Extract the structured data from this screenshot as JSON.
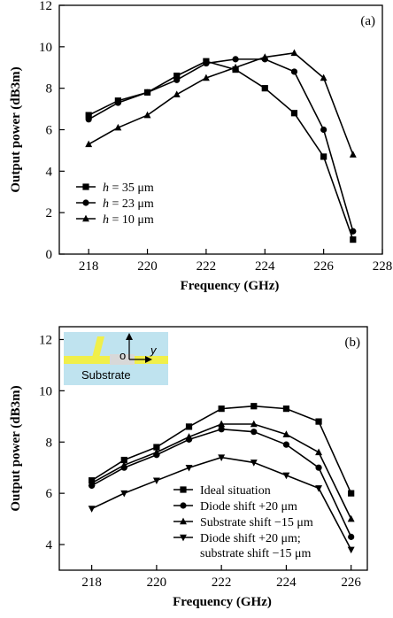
{
  "chart_data": [
    {
      "type": "line",
      "panel_label": "(a)",
      "xlabel": "Frequency (GHz)",
      "ylabel": "Output power (dB3m)",
      "xlim": [
        217,
        228
      ],
      "ylim": [
        0,
        12
      ],
      "xticks": [
        218,
        220,
        222,
        224,
        226,
        228
      ],
      "yticks": [
        0,
        2,
        4,
        6,
        8,
        10,
        12
      ],
      "legend_position": "lower-left",
      "series": [
        {
          "name": "h = 35 μm",
          "name_var": "h",
          "name_rest": " = 35 μm",
          "marker": "square",
          "x": [
            218,
            219,
            220,
            221,
            222,
            223,
            224,
            225,
            226,
            227
          ],
          "y": [
            6.7,
            7.4,
            7.8,
            8.6,
            9.3,
            8.9,
            8.0,
            6.8,
            4.7,
            0.7
          ]
        },
        {
          "name": "h = 23 μm",
          "name_var": "h",
          "name_rest": " = 23 μm",
          "marker": "circle",
          "x": [
            218,
            219,
            220,
            221,
            222,
            223,
            224,
            225,
            226,
            227
          ],
          "y": [
            6.5,
            7.3,
            7.8,
            8.4,
            9.2,
            9.4,
            9.4,
            8.8,
            6.0,
            1.1
          ]
        },
        {
          "name": "h = 10 μm",
          "name_var": "h",
          "name_rest": " = 10 μm",
          "marker": "triangle-up",
          "x": [
            218,
            219,
            220,
            221,
            222,
            223,
            224,
            225,
            226,
            227
          ],
          "y": [
            5.3,
            6.1,
            6.7,
            7.7,
            8.5,
            9.0,
            9.5,
            9.7,
            8.5,
            4.8
          ]
        }
      ]
    },
    {
      "type": "line",
      "panel_label": "(b)",
      "xlabel": "Frequency (GHz)",
      "ylabel": "Output power (dB3m)",
      "xlim": [
        217,
        226.5
      ],
      "ylim": [
        3,
        12.5
      ],
      "xticks": [
        218,
        220,
        222,
        224,
        226
      ],
      "yticks": [
        4,
        6,
        8,
        10,
        12
      ],
      "legend_position": "lower-right",
      "inset": {
        "label": "Substrate",
        "axis_origin": "o",
        "axis_y": "y"
      },
      "series": [
        {
          "name": "Ideal situation",
          "marker": "square",
          "x": [
            218,
            219,
            220,
            221,
            222,
            223,
            224,
            225,
            226
          ],
          "y": [
            6.5,
            7.3,
            7.8,
            8.6,
            9.3,
            9.4,
            9.3,
            8.8,
            6.0
          ]
        },
        {
          "name": "Diode shift +20 μm",
          "marker": "circle",
          "x": [
            218,
            219,
            220,
            221,
            222,
            223,
            224,
            225,
            226
          ],
          "y": [
            6.3,
            7.0,
            7.5,
            8.1,
            8.5,
            8.4,
            7.9,
            7.0,
            4.3
          ]
        },
        {
          "name": "Substrate shift −15 μm",
          "marker": "triangle-up",
          "x": [
            218,
            219,
            220,
            221,
            222,
            223,
            224,
            225,
            226
          ],
          "y": [
            6.4,
            7.1,
            7.6,
            8.2,
            8.7,
            8.7,
            8.3,
            7.6,
            5.0
          ]
        },
        {
          "name": "Diode shift +20 μm; substrate shift −15 μm",
          "name_lines": [
            "Diode shift +20 μm;",
            "substrate shift −15 μm"
          ],
          "marker": "triangle-down",
          "x": [
            218,
            219,
            220,
            221,
            222,
            223,
            224,
            225,
            226
          ],
          "y": [
            5.4,
            6.0,
            6.5,
            7.0,
            7.4,
            7.2,
            6.7,
            6.2,
            3.8
          ]
        }
      ]
    }
  ]
}
